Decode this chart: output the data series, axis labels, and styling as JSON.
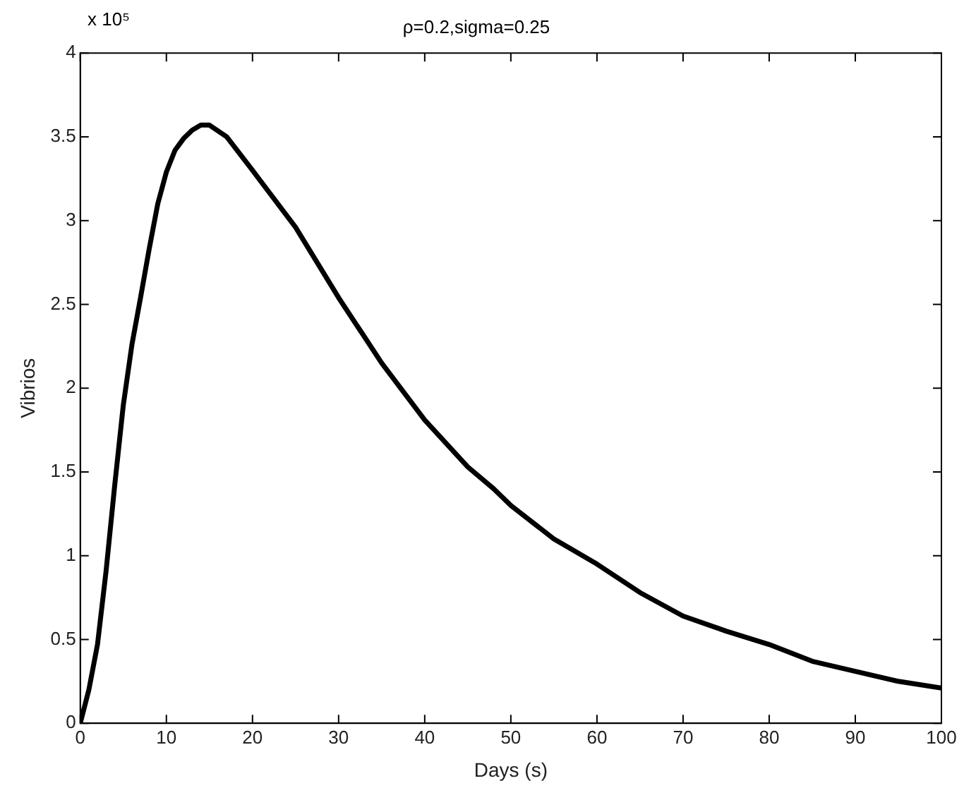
{
  "chart_data": {
    "type": "line",
    "title": "ρ=0.2,sigma=0.25",
    "xlabel": "Days (s)",
    "ylabel": "Vibrios",
    "annotations": [
      "x 10⁵"
    ],
    "x": [
      0,
      1,
      2,
      3,
      4,
      5,
      6,
      7,
      8,
      9,
      10,
      11,
      12,
      13,
      14,
      15,
      17,
      20,
      25,
      30,
      35,
      40,
      45,
      48,
      50,
      55,
      60,
      65,
      70,
      75,
      80,
      85,
      90,
      95,
      100
    ],
    "series": [
      {
        "color": "#000000",
        "values": [
          0,
          0.2,
          0.47,
          0.91,
          1.42,
          1.9,
          2.26,
          2.54,
          2.83,
          3.1,
          3.29,
          3.42,
          3.49,
          3.54,
          3.57,
          3.57,
          3.5,
          3.3,
          2.96,
          2.54,
          2.15,
          1.81,
          1.53,
          1.4,
          1.3,
          1.1,
          0.95,
          0.78,
          0.64,
          0.55,
          0.47,
          0.37,
          0.31,
          0.25,
          0.21
        ]
      }
    ],
    "xlim": [
      0,
      100
    ],
    "xticks": [
      0,
      10,
      20,
      30,
      40,
      50,
      60,
      70,
      80,
      90,
      100
    ],
    "ylim": [
      0,
      4
    ],
    "yticks": [
      0,
      0.5,
      1,
      1.5,
      2,
      2.5,
      3,
      3.5,
      4
    ],
    "grid": false,
    "legend": false,
    "marker": "none",
    "line_style": "solid"
  }
}
